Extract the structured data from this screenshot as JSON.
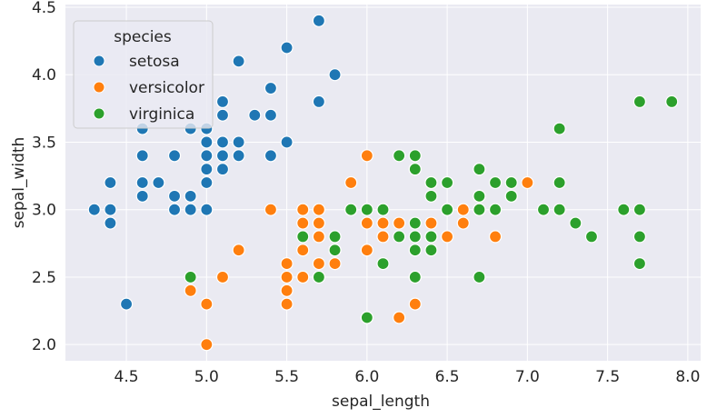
{
  "chart_data": {
    "type": "scatter",
    "xlabel": "sepal_length",
    "ylabel": "sepal_width",
    "xlim": [
      4.12,
      8.08
    ],
    "ylim": [
      1.88,
      4.52
    ],
    "xticks": [
      "4.5",
      "5.0",
      "5.5",
      "6.0",
      "6.5",
      "7.0",
      "7.5",
      "8.0"
    ],
    "yticks": [
      "2.0",
      "2.5",
      "3.0",
      "3.5",
      "4.0",
      "4.5"
    ],
    "grid": true,
    "legend": {
      "title": "species",
      "placement": "top-left"
    },
    "series": [
      {
        "name": "setosa",
        "color": "#1f77b4",
        "points": [
          [
            5.1,
            3.5
          ],
          [
            4.9,
            3.0
          ],
          [
            4.7,
            3.2
          ],
          [
            4.6,
            3.1
          ],
          [
            5.0,
            3.6
          ],
          [
            5.4,
            3.9
          ],
          [
            4.6,
            3.4
          ],
          [
            5.0,
            3.4
          ],
          [
            4.4,
            2.9
          ],
          [
            4.9,
            3.1
          ],
          [
            5.4,
            3.7
          ],
          [
            4.8,
            3.4
          ],
          [
            4.8,
            3.0
          ],
          [
            4.3,
            3.0
          ],
          [
            5.8,
            4.0
          ],
          [
            5.7,
            4.4
          ],
          [
            5.4,
            3.9
          ],
          [
            5.1,
            3.5
          ],
          [
            5.7,
            3.8
          ],
          [
            5.1,
            3.8
          ],
          [
            5.4,
            3.4
          ],
          [
            5.1,
            3.7
          ],
          [
            4.6,
            3.6
          ],
          [
            5.1,
            3.3
          ],
          [
            4.8,
            3.4
          ],
          [
            5.0,
            3.0
          ],
          [
            5.0,
            3.4
          ],
          [
            5.2,
            3.5
          ],
          [
            5.2,
            3.4
          ],
          [
            4.7,
            3.2
          ],
          [
            4.8,
            3.1
          ],
          [
            5.4,
            3.4
          ],
          [
            5.2,
            4.1
          ],
          [
            5.5,
            4.2
          ],
          [
            4.9,
            3.1
          ],
          [
            5.0,
            3.2
          ],
          [
            5.5,
            3.5
          ],
          [
            4.9,
            3.6
          ],
          [
            4.4,
            3.0
          ],
          [
            5.1,
            3.4
          ],
          [
            5.0,
            3.5
          ],
          [
            4.5,
            2.3
          ],
          [
            4.4,
            3.2
          ],
          [
            5.0,
            3.5
          ],
          [
            5.1,
            3.8
          ],
          [
            4.8,
            3.0
          ],
          [
            5.1,
            3.8
          ],
          [
            4.6,
            3.2
          ],
          [
            5.3,
            3.7
          ],
          [
            5.0,
            3.3
          ]
        ]
      },
      {
        "name": "versicolor",
        "color": "#ff7f0e",
        "points": [
          [
            7.0,
            3.2
          ],
          [
            6.4,
            3.2
          ],
          [
            6.9,
            3.1
          ],
          [
            5.5,
            2.3
          ],
          [
            6.5,
            2.8
          ],
          [
            5.7,
            2.8
          ],
          [
            6.3,
            3.3
          ],
          [
            4.9,
            2.4
          ],
          [
            6.6,
            2.9
          ],
          [
            5.2,
            2.7
          ],
          [
            5.0,
            2.0
          ],
          [
            5.9,
            3.0
          ],
          [
            6.0,
            2.2
          ],
          [
            6.1,
            2.9
          ],
          [
            5.6,
            2.9
          ],
          [
            6.7,
            3.1
          ],
          [
            5.6,
            3.0
          ],
          [
            5.8,
            2.7
          ],
          [
            6.2,
            2.2
          ],
          [
            5.6,
            2.5
          ],
          [
            5.9,
            3.2
          ],
          [
            6.1,
            2.8
          ],
          [
            6.3,
            2.5
          ],
          [
            6.1,
            2.8
          ],
          [
            6.4,
            2.9
          ],
          [
            6.6,
            3.0
          ],
          [
            6.8,
            2.8
          ],
          [
            6.7,
            3.0
          ],
          [
            6.0,
            2.9
          ],
          [
            5.7,
            2.6
          ],
          [
            5.5,
            2.4
          ],
          [
            5.5,
            2.4
          ],
          [
            5.8,
            2.7
          ],
          [
            6.0,
            2.7
          ],
          [
            5.4,
            3.0
          ],
          [
            6.0,
            3.4
          ],
          [
            6.7,
            3.1
          ],
          [
            6.3,
            2.3
          ],
          [
            5.6,
            3.0
          ],
          [
            5.5,
            2.5
          ],
          [
            5.5,
            2.6
          ],
          [
            6.1,
            3.0
          ],
          [
            5.8,
            2.6
          ],
          [
            5.0,
            2.3
          ],
          [
            5.6,
            2.7
          ],
          [
            5.7,
            3.0
          ],
          [
            5.7,
            2.9
          ],
          [
            6.2,
            2.9
          ],
          [
            5.1,
            2.5
          ],
          [
            5.7,
            2.8
          ]
        ]
      },
      {
        "name": "virginica",
        "color": "#2ca02c",
        "points": [
          [
            6.3,
            3.3
          ],
          [
            5.8,
            2.7
          ],
          [
            7.1,
            3.0
          ],
          [
            6.3,
            2.9
          ],
          [
            6.5,
            3.0
          ],
          [
            7.6,
            3.0
          ],
          [
            4.9,
            2.5
          ],
          [
            7.3,
            2.9
          ],
          [
            6.7,
            2.5
          ],
          [
            7.2,
            3.6
          ],
          [
            6.5,
            3.2
          ],
          [
            6.4,
            2.7
          ],
          [
            6.8,
            3.0
          ],
          [
            5.7,
            2.5
          ],
          [
            5.8,
            2.8
          ],
          [
            6.4,
            3.2
          ],
          [
            6.5,
            3.0
          ],
          [
            7.7,
            3.8
          ],
          [
            7.7,
            2.6
          ],
          [
            6.0,
            2.2
          ],
          [
            6.9,
            3.2
          ],
          [
            5.6,
            2.8
          ],
          [
            7.7,
            2.8
          ],
          [
            6.3,
            2.7
          ],
          [
            6.7,
            3.3
          ],
          [
            7.2,
            3.2
          ],
          [
            6.2,
            2.8
          ],
          [
            6.1,
            3.0
          ],
          [
            6.4,
            2.8
          ],
          [
            7.2,
            3.0
          ],
          [
            7.4,
            2.8
          ],
          [
            7.9,
            3.8
          ],
          [
            6.4,
            2.8
          ],
          [
            6.3,
            2.8
          ],
          [
            6.1,
            2.6
          ],
          [
            7.7,
            3.0
          ],
          [
            6.3,
            3.4
          ],
          [
            6.4,
            3.1
          ],
          [
            6.0,
            3.0
          ],
          [
            6.9,
            3.1
          ],
          [
            6.7,
            3.1
          ],
          [
            6.9,
            3.1
          ],
          [
            5.8,
            2.7
          ],
          [
            6.8,
            3.2
          ],
          [
            6.7,
            3.3
          ],
          [
            6.7,
            3.0
          ],
          [
            6.3,
            2.5
          ],
          [
            6.5,
            3.0
          ],
          [
            6.2,
            3.4
          ],
          [
            5.9,
            3.0
          ]
        ]
      }
    ]
  }
}
